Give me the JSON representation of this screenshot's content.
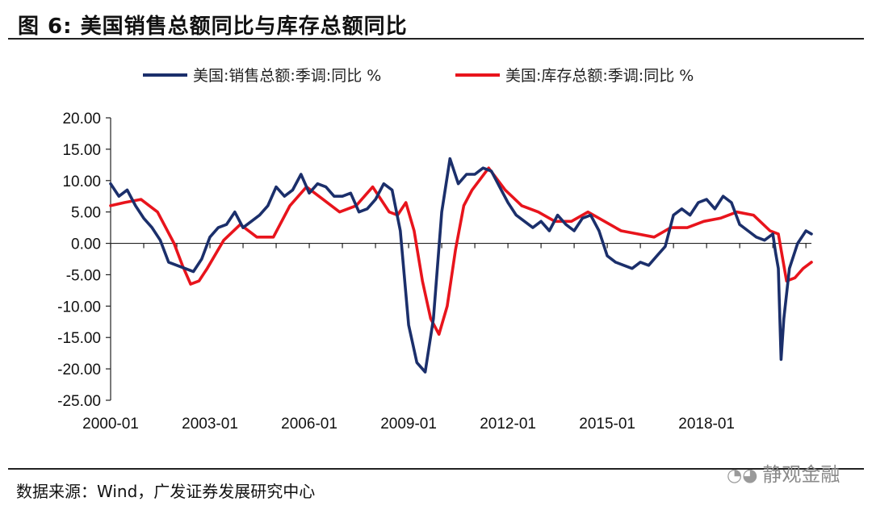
{
  "figure": {
    "title": "图 6:  美国销售总额同比与库存总额同比",
    "source": "数据来源：Wind，广发证券发展研究中心",
    "watermark": "静观金融"
  },
  "chart_data": {
    "type": "line",
    "xlabel": "",
    "ylabel": "",
    "ylim": [
      -25,
      20
    ],
    "yticks": [
      "20.00",
      "15.00",
      "10.00",
      "5.00",
      "0.00",
      "-5.00",
      "-10.00",
      "-15.00",
      "-20.00",
      "-25.00"
    ],
    "xticks": [
      "2000-01",
      "2003-01",
      "2006-01",
      "2009-01",
      "2012-01",
      "2015-01",
      "2018-01"
    ],
    "xrange": [
      "2000-01",
      "2021-03"
    ],
    "grid": false,
    "legend_position": "top",
    "series": [
      {
        "name": "美国:销售总额:季调:同比 %",
        "color": "#1b2f6b",
        "points": [
          [
            "2000-01",
            9.5
          ],
          [
            "2000-04",
            7.5
          ],
          [
            "2000-07",
            8.5
          ],
          [
            "2000-10",
            6.0
          ],
          [
            "2001-01",
            4.0
          ],
          [
            "2001-04",
            2.5
          ],
          [
            "2001-07",
            0.5
          ],
          [
            "2001-10",
            -3.0
          ],
          [
            "2002-01",
            -3.5
          ],
          [
            "2002-04",
            -4.0
          ],
          [
            "2002-07",
            -4.5
          ],
          [
            "2002-10",
            -2.5
          ],
          [
            "2003-01",
            1.0
          ],
          [
            "2003-04",
            2.5
          ],
          [
            "2003-07",
            3.0
          ],
          [
            "2003-10",
            5.0
          ],
          [
            "2004-01",
            2.5
          ],
          [
            "2004-04",
            3.5
          ],
          [
            "2004-07",
            4.5
          ],
          [
            "2004-10",
            6.0
          ],
          [
            "2005-01",
            9.0
          ],
          [
            "2005-04",
            7.5
          ],
          [
            "2005-07",
            8.5
          ],
          [
            "2005-10",
            11.0
          ],
          [
            "2006-01",
            8.0
          ],
          [
            "2006-04",
            9.5
          ],
          [
            "2006-07",
            9.0
          ],
          [
            "2006-10",
            7.5
          ],
          [
            "2007-01",
            7.5
          ],
          [
            "2007-04",
            8.0
          ],
          [
            "2007-07",
            5.0
          ],
          [
            "2007-10",
            5.5
          ],
          [
            "2008-01",
            7.0
          ],
          [
            "2008-04",
            9.5
          ],
          [
            "2008-07",
            8.5
          ],
          [
            "2008-10",
            2.0
          ],
          [
            "2009-01",
            -13.0
          ],
          [
            "2009-04",
            -19.0
          ],
          [
            "2009-07",
            -20.5
          ],
          [
            "2009-10",
            -12.0
          ],
          [
            "2010-01",
            5.0
          ],
          [
            "2010-04",
            13.5
          ],
          [
            "2010-07",
            9.5
          ],
          [
            "2010-10",
            11.0
          ],
          [
            "2011-01",
            11.0
          ],
          [
            "2011-04",
            12.0
          ],
          [
            "2011-07",
            11.5
          ],
          [
            "2011-10",
            9.0
          ],
          [
            "2012-01",
            6.5
          ],
          [
            "2012-04",
            4.5
          ],
          [
            "2012-07",
            3.5
          ],
          [
            "2012-10",
            2.5
          ],
          [
            "2013-01",
            3.5
          ],
          [
            "2013-04",
            2.0
          ],
          [
            "2013-07",
            4.5
          ],
          [
            "2013-10",
            3.0
          ],
          [
            "2014-01",
            2.0
          ],
          [
            "2014-04",
            4.0
          ],
          [
            "2014-07",
            4.5
          ],
          [
            "2014-10",
            2.0
          ],
          [
            "2015-01",
            -2.0
          ],
          [
            "2015-04",
            -3.0
          ],
          [
            "2015-07",
            -3.5
          ],
          [
            "2015-10",
            -4.0
          ],
          [
            "2016-01",
            -3.0
          ],
          [
            "2016-04",
            -3.5
          ],
          [
            "2016-07",
            -2.0
          ],
          [
            "2016-10",
            -0.5
          ],
          [
            "2017-01",
            4.5
          ],
          [
            "2017-04",
            5.5
          ],
          [
            "2017-07",
            4.5
          ],
          [
            "2017-10",
            6.5
          ],
          [
            "2018-01",
            7.0
          ],
          [
            "2018-04",
            5.5
          ],
          [
            "2018-07",
            7.5
          ],
          [
            "2018-10",
            6.5
          ],
          [
            "2019-01",
            3.0
          ],
          [
            "2019-04",
            2.0
          ],
          [
            "2019-07",
            1.0
          ],
          [
            "2019-10",
            0.5
          ],
          [
            "2020-01",
            1.5
          ],
          [
            "2020-02",
            -1.5
          ],
          [
            "2020-03",
            -4.0
          ],
          [
            "2020-04",
            -18.5
          ],
          [
            "2020-05",
            -12.0
          ],
          [
            "2020-07",
            -4.0
          ],
          [
            "2020-10",
            0.0
          ],
          [
            "2021-01",
            2.0
          ],
          [
            "2021-03",
            1.5
          ]
        ]
      },
      {
        "name": "美国:库存总额:季调:同比 %",
        "color": "#e8141c",
        "points": [
          [
            "2000-01",
            6.0
          ],
          [
            "2000-06",
            6.5
          ],
          [
            "2000-12",
            7.0
          ],
          [
            "2001-06",
            5.0
          ],
          [
            "2001-12",
            0.0
          ],
          [
            "2002-03",
            -3.5
          ],
          [
            "2002-06",
            -6.5
          ],
          [
            "2002-09",
            -6.0
          ],
          [
            "2002-12",
            -4.0
          ],
          [
            "2003-06",
            0.5
          ],
          [
            "2003-12",
            3.0
          ],
          [
            "2004-06",
            1.0
          ],
          [
            "2004-12",
            1.0
          ],
          [
            "2005-06",
            6.0
          ],
          [
            "2005-12",
            9.0
          ],
          [
            "2006-06",
            7.0
          ],
          [
            "2006-12",
            5.0
          ],
          [
            "2007-06",
            6.0
          ],
          [
            "2007-12",
            9.0
          ],
          [
            "2008-06",
            5.0
          ],
          [
            "2008-09",
            4.5
          ],
          [
            "2008-12",
            6.5
          ],
          [
            "2009-03",
            2.0
          ],
          [
            "2009-06",
            -6.0
          ],
          [
            "2009-09",
            -12.0
          ],
          [
            "2009-12",
            -14.5
          ],
          [
            "2010-03",
            -10.0
          ],
          [
            "2010-06",
            -1.0
          ],
          [
            "2010-09",
            6.0
          ],
          [
            "2010-12",
            8.5
          ],
          [
            "2011-06",
            12.0
          ],
          [
            "2011-12",
            8.5
          ],
          [
            "2012-06",
            6.0
          ],
          [
            "2012-12",
            5.0
          ],
          [
            "2013-06",
            3.5
          ],
          [
            "2013-12",
            3.5
          ],
          [
            "2014-06",
            5.0
          ],
          [
            "2014-12",
            3.5
          ],
          [
            "2015-06",
            2.0
          ],
          [
            "2015-12",
            1.5
          ],
          [
            "2016-06",
            1.0
          ],
          [
            "2016-12",
            2.5
          ],
          [
            "2017-06",
            2.5
          ],
          [
            "2017-12",
            3.5
          ],
          [
            "2018-06",
            4.0
          ],
          [
            "2018-12",
            5.0
          ],
          [
            "2019-06",
            4.5
          ],
          [
            "2019-12",
            2.0
          ],
          [
            "2020-03",
            1.5
          ],
          [
            "2020-06",
            -6.0
          ],
          [
            "2020-09",
            -5.5
          ],
          [
            "2020-12",
            -4.0
          ],
          [
            "2021-03",
            -3.0
          ]
        ]
      }
    ]
  }
}
